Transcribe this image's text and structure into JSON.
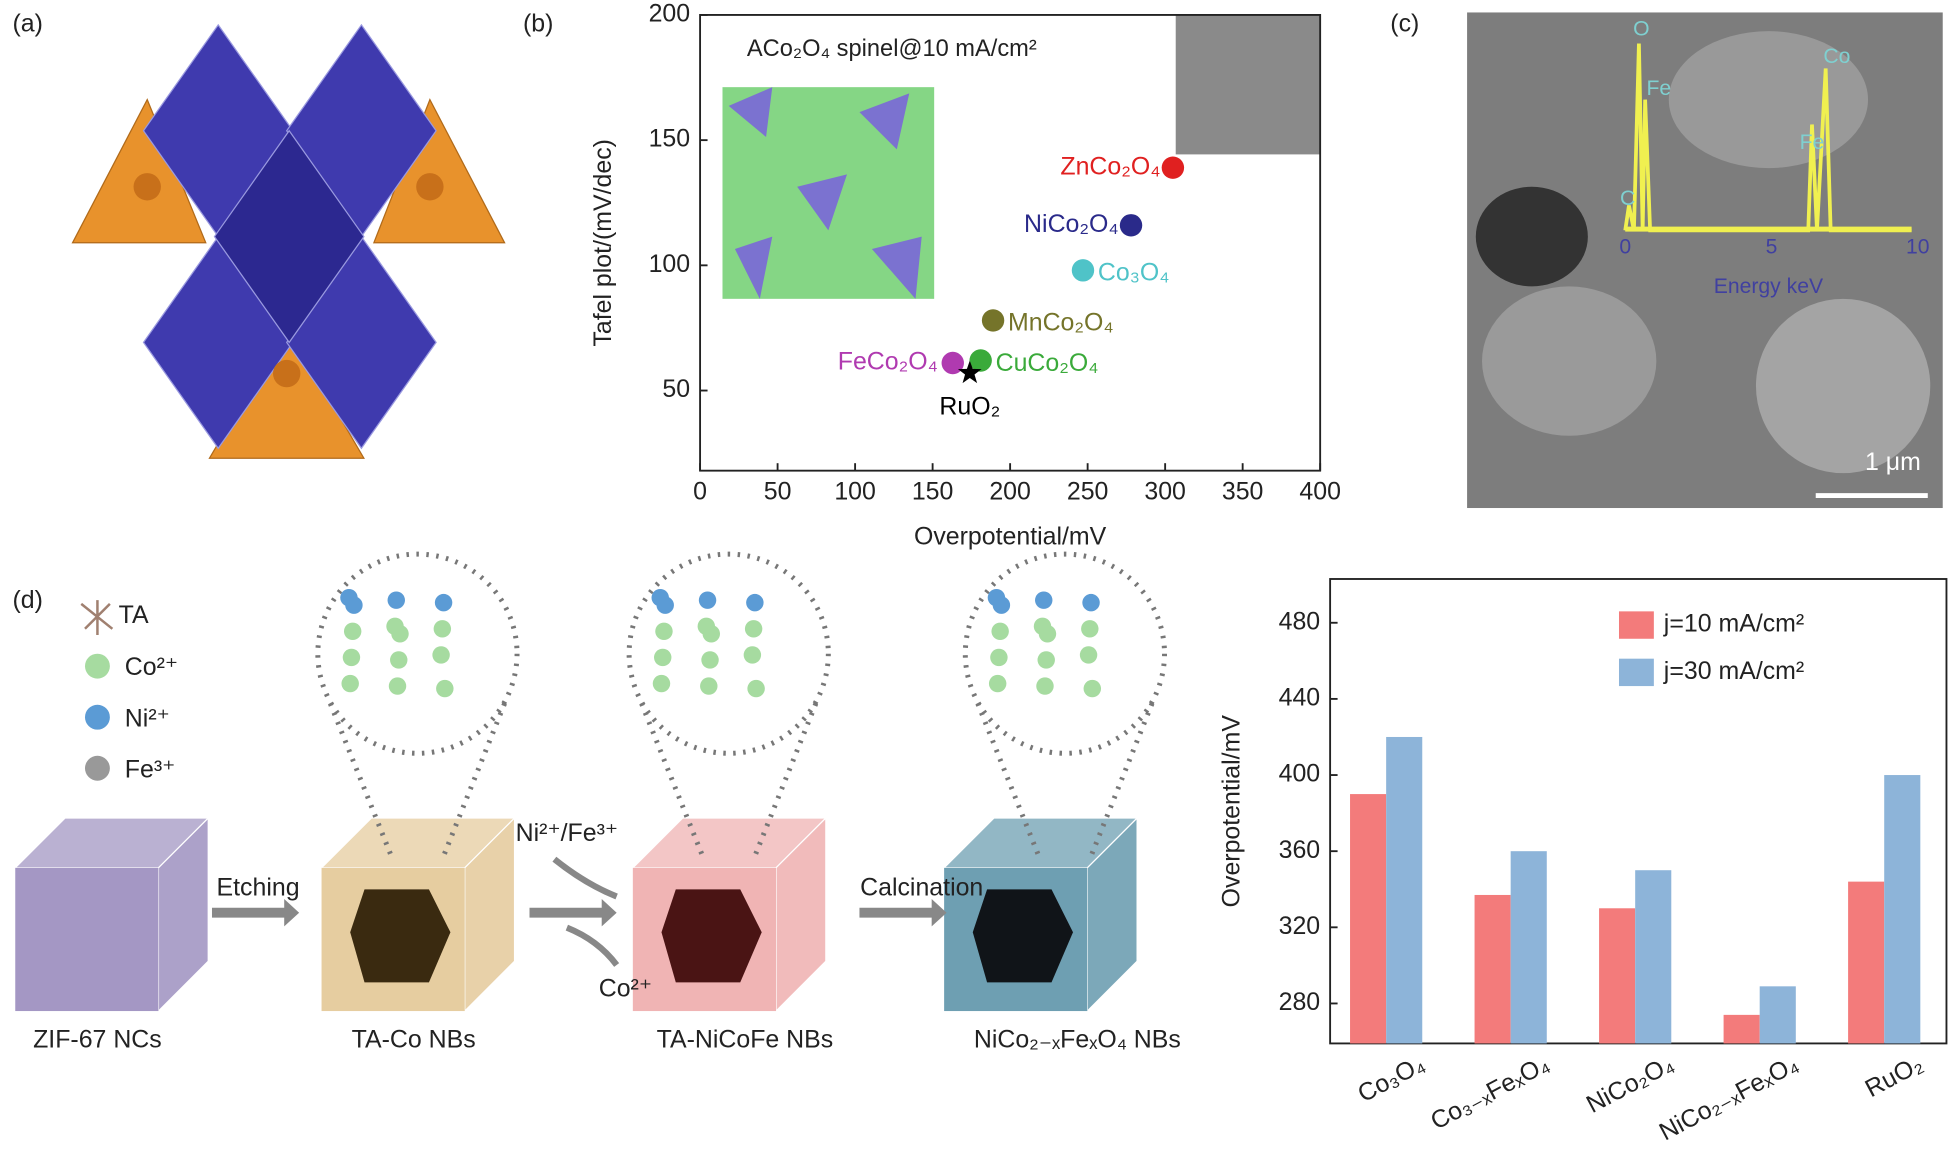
{
  "panel_labels": [
    "(a)",
    "(b)",
    "(c)",
    "(d)"
  ],
  "chart_data": [
    {
      "type": "scatter",
      "annotation": "ACo₂O₄ spinel@10 mA/cm²",
      "x_label": "Overpotential/mV",
      "y_label": "Tafel plot/(mV/dec)",
      "xlim": [
        0,
        400
      ],
      "ylim": [
        18,
        200
      ],
      "xticks": [
        0,
        50,
        100,
        150,
        200,
        250,
        300,
        350,
        400
      ],
      "yticks": [
        50,
        100,
        150,
        200
      ],
      "series": [
        {
          "name": "ZnCo₂O₄",
          "color": "#e02020",
          "x": [
            305
          ],
          "values": [
            139
          ]
        },
        {
          "name": "NiCo₂O₄",
          "color": "#2a2a8a",
          "x": [
            278
          ],
          "values": [
            116
          ]
        },
        {
          "name": "Co₃O₄",
          "color": "#4fc3c8",
          "x": [
            247
          ],
          "values": [
            98
          ]
        },
        {
          "name": "MnCo₂O₄",
          "color": "#75742a",
          "x": [
            189
          ],
          "values": [
            78
          ]
        },
        {
          "name": "FeCo₂O₄",
          "color": "#b03ab0",
          "x": [
            163
          ],
          "values": [
            61
          ]
        },
        {
          "name": "CuCo₂O₄",
          "color": "#3aaa3a",
          "x": [
            181
          ],
          "values": [
            62
          ]
        },
        {
          "name": "RuO₂",
          "color": "#000000",
          "marker": "star",
          "x": [
            174
          ],
          "values": [
            57
          ]
        }
      ]
    },
    {
      "type": "bar",
      "y_label": "Overpotential/mV",
      "categories": [
        "Co₃O₄",
        "Co₃₋ₓFeₓO₄",
        "NiCo₂O₄",
        "NiCo₂₋ₓFeₓO₄",
        "RuO₂"
      ],
      "series": [
        {
          "name": "j=10 mA/cm²",
          "color": "#f37b7b",
          "values": [
            390,
            337,
            330,
            274,
            344
          ]
        },
        {
          "name": "j=30 mA/cm²",
          "color": "#8db4d9",
          "values": [
            420,
            360,
            350,
            289,
            400
          ]
        }
      ],
      "ylim": [
        259,
        503
      ],
      "yticks": [
        280,
        320,
        360,
        400,
        440,
        480
      ],
      "legend": "upper right"
    }
  ],
  "edx_inset": {
    "peak_labels": [
      "O",
      "Fe",
      "C",
      "Co",
      "Fe"
    ],
    "xticks": [
      0,
      5,
      10
    ],
    "x_label": "Energy keV"
  },
  "scale_bar": "1 μm",
  "scheme": {
    "legend": [
      "TA",
      "Co²⁺",
      "Ni²⁺",
      "Fe³⁺"
    ],
    "steps": [
      "Etching",
      "Ni²⁺/Fe³⁺",
      "Co²⁺",
      "Calcination"
    ],
    "stages": [
      "ZIF-67 NCs",
      "TA-Co NBs",
      "TA-NiCoFe NBs",
      "NiCo₂₋ₓFeₓO₄ NBs"
    ]
  }
}
